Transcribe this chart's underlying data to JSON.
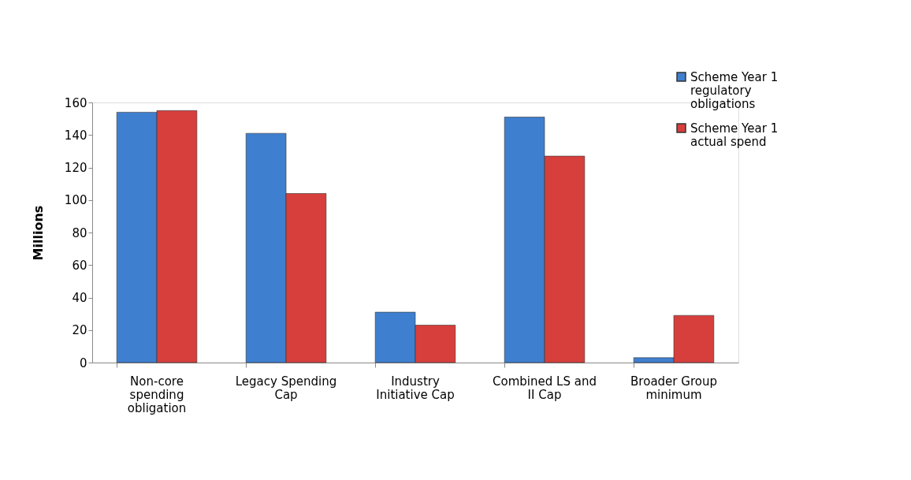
{
  "chart_data": {
    "type": "bar",
    "ylabel": "Millions",
    "categories": [
      "Non-core spending obligation",
      "Legacy Spending Cap",
      "Industry Initiative Cap",
      "Combined LS and II Cap",
      "Broader Group minimum"
    ],
    "series": [
      {
        "name": "Scheme Year 1 regulatory obligations",
        "color": "#3f7fcf",
        "values": [
          154,
          141,
          31,
          151,
          3
        ]
      },
      {
        "name": "Scheme Year 1 actual spend",
        "color": "#d63f3c",
        "values": [
          155,
          104,
          23,
          127,
          29
        ]
      }
    ],
    "ylim": [
      0,
      160
    ],
    "yticks": [
      0,
      20,
      40,
      60,
      80,
      100,
      120,
      140,
      160
    ],
    "grid": false,
    "legend": "top right"
  }
}
